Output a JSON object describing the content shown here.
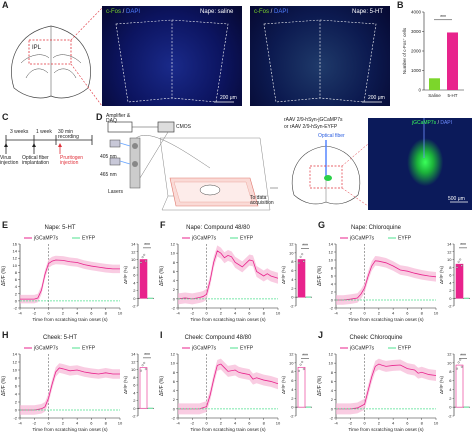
{
  "panel_labels": {
    "A": "A",
    "B": "B",
    "C": "C",
    "D": "D",
    "E": "E",
    "F": "F",
    "G": "G",
    "H": "H",
    "I": "I",
    "J": "J"
  },
  "panelA": {
    "brain_label": "IPL",
    "image1_title_cfos": "c-Fos",
    "image1_title_sep": " / ",
    "image1_title_dapi": "DAPI",
    "image1_title_right": "Nape: saline",
    "image2_title_cfos": "c-Fos",
    "image2_title_sep": " / ",
    "image2_title_dapi": "DAPI",
    "image2_title_right": "Nape: 5-HT",
    "scale1": "200 μm",
    "scale2": "200 μm"
  },
  "panelB": {
    "ylabel": "Number of c-Fos⁺ cells",
    "significance": "***",
    "colors": {
      "saline": "#7cd62b",
      "5ht": "#e8238c"
    }
  },
  "panelC": {
    "step1": "3 weeks",
    "step2": "1 week",
    "step3": "30 min recording",
    "event1": "Virus injection",
    "event2": "Optical fiber implantation",
    "event3": "Pruritogen injection"
  },
  "panelD": {
    "amp": "Amplifier & DAQ",
    "cmos": "CMOS",
    "l405": "405 nm",
    "l465": "465 nm",
    "lasers": "Lasers",
    "daq": "To data acquisition",
    "virus1": "rAAV 2/9-hSyn-jGCaMP7s",
    "virus2": "or  rAAV 2/9-hSyn-EYFP",
    "fiber": "Optical fiber",
    "img_title_a": "jGCaMP7s",
    "img_title_sep": " / ",
    "img_title_b": "DAPI",
    "scale": "500 μm"
  },
  "common": {
    "legend_gcamp": "jGCaMP7s",
    "legend_eyfp": "EYFP",
    "ylabel": "ΔF/F (%)",
    "xlabel": "Time from scratching train onset (s)",
    "bar_sig": "***",
    "colors": {
      "gcamp": "#e8238c",
      "eyfp": "#4fe08f",
      "shade": "#f7b6d6"
    }
  },
  "chart_data": [
    {
      "type": "bar",
      "title": "",
      "categories": [
        "Saline",
        "5-HT"
      ],
      "values": [
        600,
        2950
      ],
      "ylabel": "Number of c-Fos⁺ cells",
      "ylim": [
        0,
        4000
      ],
      "yticks": [
        0,
        1000,
        2000,
        3000,
        4000
      ]
    },
    {
      "type": "line",
      "title": "Nape: 5-HT",
      "xlabel": "Time from scratching train onset (s)",
      "ylabel": "ΔF/F (%)",
      "xlim": [
        -4,
        10
      ],
      "ylim": [
        -2,
        16
      ],
      "xticks": [
        -4,
        -2,
        0,
        2,
        4,
        6,
        8,
        10
      ],
      "yticks": [
        -2,
        0,
        2,
        4,
        6,
        8,
        10,
        12,
        14,
        16
      ],
      "series": [
        {
          "name": "jGCaMP7s",
          "x": [
            -4,
            -3,
            -2,
            -1.5,
            -1,
            -0.5,
            0,
            0.5,
            1,
            2,
            3,
            4,
            5,
            6,
            7,
            8,
            9,
            10
          ],
          "y": [
            0.5,
            0.5,
            0.5,
            0.8,
            3,
            7.5,
            10.5,
            11.2,
            11.5,
            11.4,
            11,
            10.8,
            10.2,
            9.8,
            9.5,
            9.2,
            9,
            9
          ]
        },
        {
          "name": "EYFP",
          "x": [
            -4,
            10
          ],
          "y": [
            0,
            0
          ]
        }
      ],
      "bar": {
        "categories": [
          "jGCaMP7s",
          "EYFP"
        ],
        "values": [
          10,
          0
        ],
        "ylim": [
          -2,
          14
        ],
        "yticks": [
          -2,
          0,
          2,
          4,
          6,
          8,
          10,
          12,
          14
        ]
      }
    },
    {
      "type": "line",
      "title": "Nape: Compound 48/80",
      "xlabel": "Time from scratching train onset (s)",
      "ylabel": "ΔF/F (%)",
      "xlim": [
        -4,
        10
      ],
      "ylim": [
        -2,
        12
      ],
      "xticks": [
        -4,
        -2,
        0,
        2,
        4,
        6,
        8,
        10
      ],
      "yticks": [
        -2,
        0,
        2,
        4,
        6,
        8,
        10,
        12
      ],
      "series": [
        {
          "name": "jGCaMP7s",
          "x": [
            -4,
            -3,
            -2,
            -1,
            -0.5,
            0,
            0.5,
            1,
            1.5,
            2,
            2.5,
            3,
            3.5,
            4,
            5,
            6,
            6.5,
            7,
            8,
            8.5,
            9,
            10
          ],
          "y": [
            0,
            0.2,
            0,
            0.3,
            0.5,
            1,
            4,
            8,
            10.5,
            10,
            9,
            9.5,
            9.2,
            8,
            7,
            8.5,
            8.3,
            6,
            5,
            5.5,
            5,
            4.5
          ]
        },
        {
          "name": "EYFP",
          "x": [
            -4,
            10
          ],
          "y": [
            0,
            0
          ]
        }
      ],
      "bar": {
        "categories": [
          "jGCaMP7s",
          "EYFP"
        ],
        "values": [
          8.5,
          0
        ],
        "ylim": [
          -2,
          12
        ],
        "yticks": [
          -2,
          0,
          2,
          4,
          6,
          8,
          10,
          12
        ]
      }
    },
    {
      "type": "line",
      "title": "Nape: Chloroquine",
      "xlabel": "Time from scratching train onset (s)",
      "ylabel": "ΔF/F (%)",
      "xlim": [
        -4,
        10
      ],
      "ylim": [
        -2,
        14
      ],
      "xticks": [
        -4,
        -2,
        0,
        2,
        4,
        6,
        8,
        10
      ],
      "yticks": [
        -2,
        0,
        2,
        4,
        6,
        8,
        10,
        12,
        14
      ],
      "series": [
        {
          "name": "jGCaMP7s",
          "x": [
            -4,
            -3,
            -2,
            -1,
            -0.5,
            0,
            0.5,
            1,
            1.5,
            2,
            3,
            4,
            5,
            6,
            7,
            8,
            9,
            10
          ],
          "y": [
            0,
            0,
            0.2,
            0.5,
            1.5,
            3,
            6,
            8.5,
            9.8,
            9.7,
            9.3,
            8.5,
            7.5,
            7.2,
            6.7,
            6.3,
            6,
            5.8
          ]
        },
        {
          "name": "EYFP",
          "x": [
            -4,
            10
          ],
          "y": [
            0,
            0
          ]
        }
      ],
      "bar": {
        "categories": [
          "jGCaMP7s",
          "EYFP"
        ],
        "values": [
          8.8,
          0
        ],
        "ylim": [
          -2,
          14
        ],
        "yticks": [
          -2,
          0,
          2,
          4,
          6,
          8,
          10,
          12,
          14
        ]
      }
    },
    {
      "type": "line",
      "title": "Cheek: 5-HT",
      "xlabel": "Time from scratching train onset (s)",
      "ylabel": "ΔF/F (%)",
      "xlim": [
        -4,
        10
      ],
      "ylim": [
        -2,
        14
      ],
      "xticks": [
        -4,
        -2,
        0,
        2,
        4,
        6,
        8,
        10
      ],
      "yticks": [
        -2,
        0,
        2,
        4,
        6,
        8,
        10,
        12,
        14
      ],
      "series": [
        {
          "name": "jGCaMP7s",
          "x": [
            -4,
            -3,
            -2,
            -1,
            -0.5,
            0,
            0.5,
            1,
            1.5,
            2,
            3,
            4,
            5,
            6,
            7,
            8,
            9,
            10
          ],
          "y": [
            0,
            0,
            0,
            0.3,
            0.8,
            3,
            6.5,
            9.5,
            10.5,
            10.3,
            9.8,
            10,
            9.5,
            9.2,
            9,
            9.3,
            9,
            9
          ]
        },
        {
          "name": "EYFP",
          "x": [
            -4,
            10
          ],
          "y": [
            0,
            0
          ]
        }
      ],
      "bar": {
        "categories": [
          "jGCaMP7s",
          "EYFP"
        ],
        "values": [
          10.5,
          0
        ],
        "ylim": [
          -2,
          14
        ],
        "yticks": [
          -2,
          0,
          2,
          4,
          6,
          8,
          10,
          12,
          14
        ]
      }
    },
    {
      "type": "line",
      "title": "Cheek: Compound 48/80",
      "xlabel": "Time from scratching train onset (s)",
      "ylabel": "ΔF/F (%)",
      "xlim": [
        -4,
        10
      ],
      "ylim": [
        -2,
        12
      ],
      "xticks": [
        -4,
        -2,
        0,
        2,
        4,
        6,
        8,
        10
      ],
      "yticks": [
        -2,
        0,
        2,
        4,
        6,
        8,
        10,
        12
      ],
      "series": [
        {
          "name": "jGCaMP7s",
          "x": [
            -4,
            -3,
            -2,
            -1,
            0,
            0.5,
            1,
            1.5,
            2,
            2.5,
            3,
            4,
            4.5,
            5,
            6,
            6.5,
            7,
            8,
            9,
            10
          ],
          "y": [
            0,
            0,
            0,
            0,
            0.5,
            3,
            6.5,
            9.5,
            9.8,
            9,
            8.2,
            8.5,
            8,
            7.8,
            7.5,
            6.5,
            6.8,
            6.3,
            6,
            5.5
          ]
        },
        {
          "name": "EYFP",
          "x": [
            -4,
            10
          ],
          "y": [
            0,
            0
          ]
        }
      ],
      "bar": {
        "categories": [
          "jGCaMP7s",
          "EYFP"
        ],
        "values": [
          9,
          0
        ],
        "ylim": [
          -2,
          12
        ],
        "yticks": [
          -2,
          0,
          2,
          4,
          6,
          8,
          10,
          12
        ]
      }
    },
    {
      "type": "line",
      "title": "Cheek: Chloroquine",
      "xlabel": "Time from scratching train onset (s)",
      "ylabel": "ΔF/F (%)",
      "xlim": [
        -4,
        10
      ],
      "ylim": [
        -2,
        12
      ],
      "xticks": [
        -4,
        -2,
        0,
        2,
        4,
        6,
        8,
        10
      ],
      "yticks": [
        -2,
        0,
        2,
        4,
        6,
        8,
        10,
        12
      ],
      "series": [
        {
          "name": "jGCaMP7s",
          "x": [
            -4,
            -3,
            -2,
            -1,
            0,
            0.5,
            1,
            1.5,
            2,
            2.5,
            3,
            4,
            5,
            6,
            7,
            7.5,
            8,
            9,
            10
          ],
          "y": [
            0,
            0,
            0,
            0.2,
            1,
            4,
            7,
            9.3,
            9.8,
            9.5,
            9.3,
            9.5,
            9.6,
            8.8,
            8.5,
            7.8,
            8,
            7.5,
            7.3
          ]
        },
        {
          "name": "EYFP",
          "x": [
            -4,
            10
          ],
          "y": [
            0,
            0
          ]
        }
      ],
      "bar": {
        "categories": [
          "jGCaMP7s",
          "EYFP"
        ],
        "values": [
          9.5,
          0
        ],
        "ylim": [
          -2,
          12
        ],
        "yticks": [
          -2,
          0,
          2,
          4,
          6,
          8,
          10,
          12
        ]
      }
    }
  ]
}
